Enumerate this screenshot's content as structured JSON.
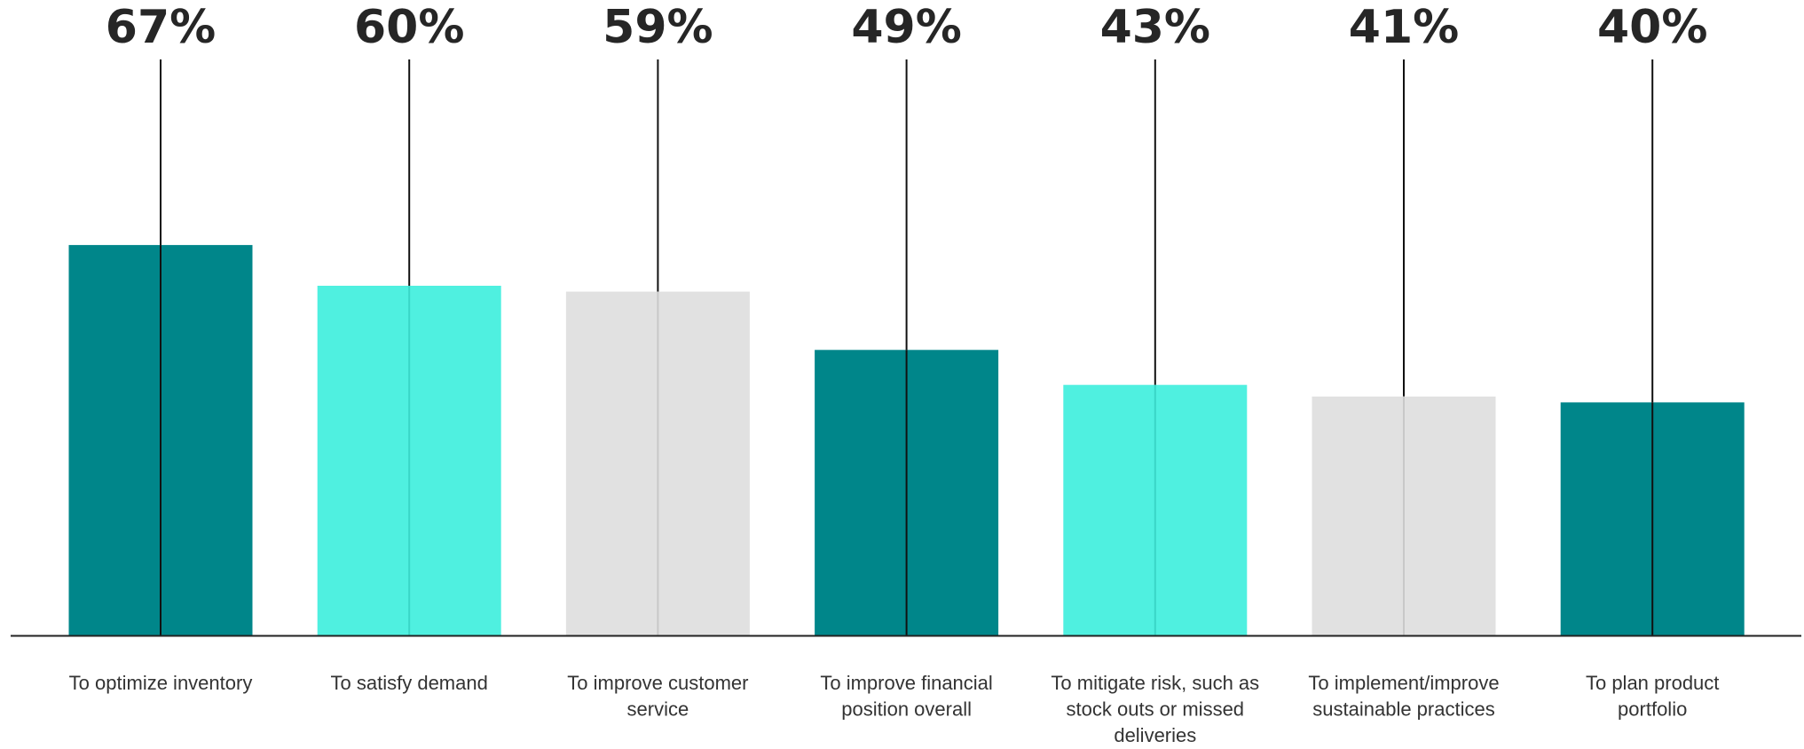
{
  "chart_data": {
    "type": "bar",
    "categories": [
      [
        "To optimize inventory"
      ],
      [
        "To satisfy demand"
      ],
      [
        "To improve customer",
        "service"
      ],
      [
        "To improve financial",
        "position overall"
      ],
      [
        "To mitigate risk, such as",
        "stock outs or missed",
        "deliveries"
      ],
      [
        "To implement/improve",
        "sustainable practices"
      ],
      [
        "To plan product",
        "portfolio"
      ]
    ],
    "values": [
      67,
      60,
      59,
      49,
      43,
      41,
      40
    ],
    "value_labels": [
      "67%",
      "60%",
      "59%",
      "49%",
      "43%",
      "41%",
      "40%"
    ],
    "colors": [
      "#00868a",
      "#4ff0e0",
      "#e1e1e1",
      "#00868a",
      "#4ff0e0",
      "#e1e1e1",
      "#00868a"
    ],
    "ylim": [
      0,
      100
    ],
    "title": "",
    "xlabel": "",
    "ylabel": ""
  }
}
